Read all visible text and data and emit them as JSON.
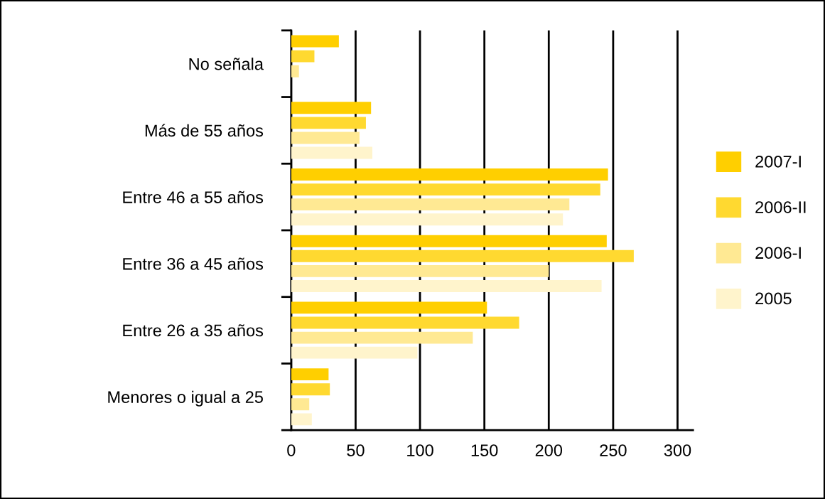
{
  "chart_data": {
    "type": "bar",
    "orientation": "horizontal",
    "categories": [
      "No señala",
      "Más de 55 años",
      "Entre 46 a 55 años",
      "Entre 36 a 45 años",
      "Entre 26 a 35 años",
      "Menores o igual a 25"
    ],
    "series": [
      {
        "name": "2007-I",
        "color": "#ffcf00",
        "values": [
          37,
          62,
          246,
          245,
          152,
          29
        ]
      },
      {
        "name": "2006-II",
        "color": "#ffd930",
        "values": [
          18,
          58,
          240,
          266,
          177,
          30
        ]
      },
      {
        "name": "2006-I",
        "color": "#ffe993",
        "values": [
          6,
          53,
          216,
          200,
          141,
          14
        ]
      },
      {
        "name": "2005",
        "color": "#fff4cc",
        "values": [
          null,
          63,
          211,
          241,
          98,
          16
        ]
      }
    ],
    "xlim": [
      0,
      312
    ],
    "xticks": [
      0,
      50,
      100,
      150,
      200,
      250,
      300
    ],
    "grid": "x",
    "legend": "right"
  }
}
